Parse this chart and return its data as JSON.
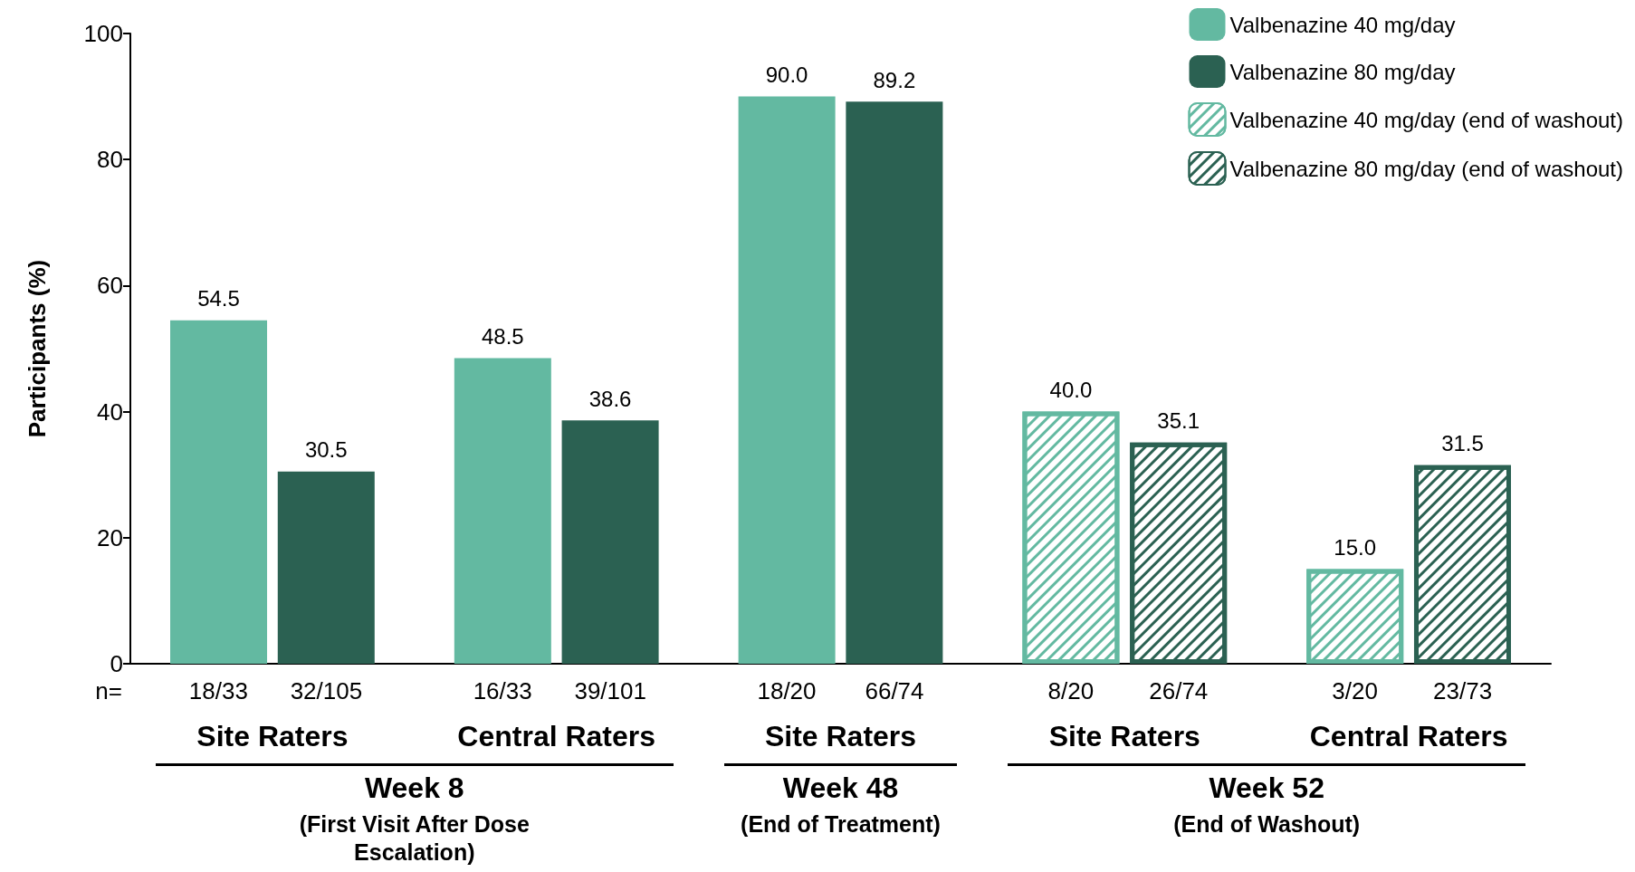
{
  "chart_data": {
    "type": "bar",
    "ylabel": "Participants (%)",
    "categories": [
      "Site Raters",
      "Central Raters",
      "Site Raters",
      "Site Raters",
      "Central Raters"
    ],
    "series": [
      {
        "name": "Valbenazine 40 mg/day",
        "color": "#63b9a1",
        "values": [
          54.5,
          48.5,
          90.0,
          null,
          null
        ],
        "value_labels": [
          "54.5",
          "48.5",
          "90.0",
          null,
          null
        ]
      },
      {
        "name": "Valbenazine 80 mg/day",
        "color": "#2b6152",
        "values": [
          30.5,
          38.6,
          89.2,
          null,
          null
        ],
        "value_labels": [
          "30.5",
          "38.6",
          "89.2",
          null,
          null
        ]
      },
      {
        "name": "Valbenazine 40 mg/day (end of washout)",
        "color": "#63b9a1",
        "values": [
          null,
          null,
          null,
          40.0,
          15.0
        ],
        "value_labels": [
          null,
          null,
          null,
          "40.0",
          "15.0"
        ]
      },
      {
        "name": "Valbenazine 80 mg/day (end of washout)",
        "color": "#2b6152",
        "values": [
          null,
          null,
          null,
          35.1,
          31.5
        ],
        "value_labels": [
          null,
          null,
          null,
          "35.1",
          "31.5"
        ]
      }
    ],
    "ylim": [
      0,
      100
    ],
    "yticks": [
      0,
      20,
      40,
      60,
      80,
      100
    ],
    "grid": false,
    "legend": "top right",
    "annotations": [
      "n=",
      "18/33",
      "32/105",
      "16/33",
      "39/101",
      "18/20",
      "66/74",
      "8/20",
      "26/74",
      "3/20",
      "23/73",
      "Week 8",
      "(First Visit After Dose Escalation)",
      "Week 48",
      "(End of Treatment)",
      "Week 52",
      "(End of Washout)"
    ]
  }
}
